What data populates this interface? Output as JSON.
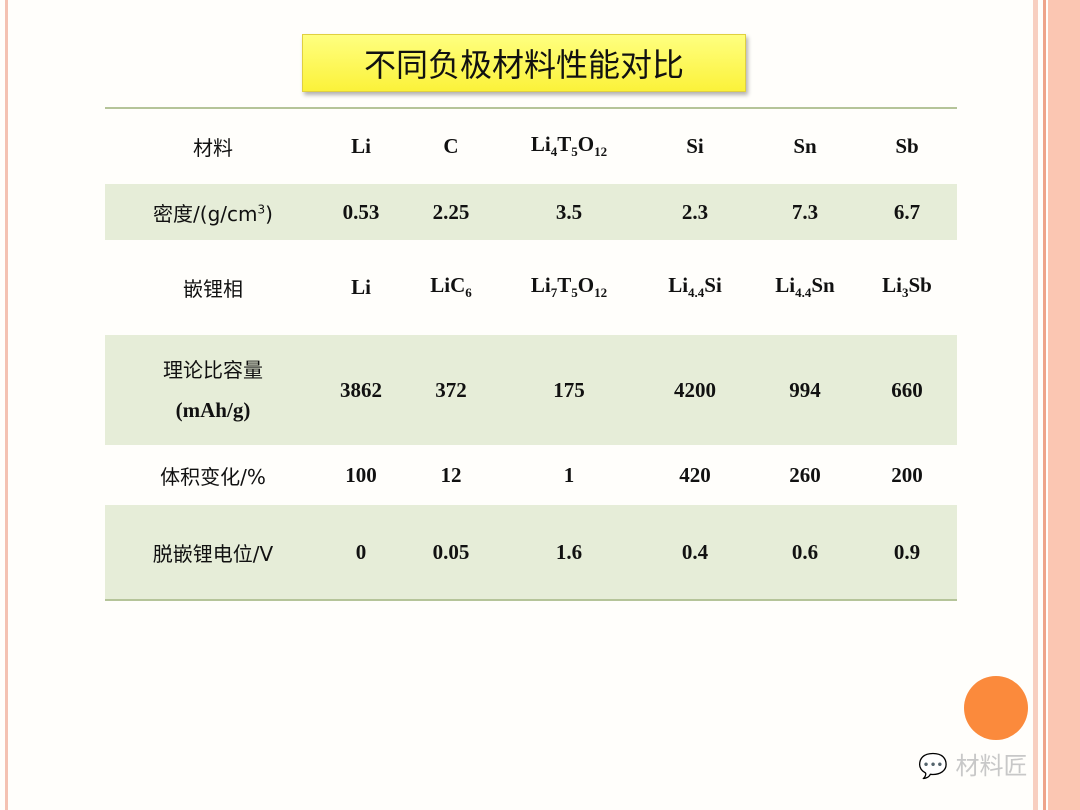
{
  "title": "不同负极材料性能对比",
  "table": {
    "header": [
      "材料",
      "Li",
      "C",
      "Li4T5O12",
      "Si",
      "Sn",
      "Sb"
    ],
    "rows": [
      {
        "label": "密度/(g/cm3)",
        "values": [
          "0.53",
          "2.25",
          "3.5",
          "2.3",
          "7.3",
          "6.7"
        ]
      },
      {
        "label": "嵌锂相",
        "values": [
          "Li",
          "LiC6",
          "Li7T5O12",
          "Li4.4Si",
          "Li4.4Sn",
          "Li3Sb"
        ]
      },
      {
        "label": "理论比容量 (mAh/g)",
        "values": [
          "3862",
          "372",
          "175",
          "4200",
          "994",
          "660"
        ]
      },
      {
        "label": "体积变化/%",
        "values": [
          "100",
          "12",
          "1",
          "420",
          "260",
          "200"
        ]
      },
      {
        "label": "脱嵌锂电位/V",
        "values": [
          "0",
          "0.05",
          "1.6",
          "0.4",
          "0.6",
          "0.9"
        ]
      }
    ]
  },
  "watermark": "材料匠",
  "colors": {
    "title_bg": "#fbf23a",
    "stripe": "#e6edd8",
    "circle": "#fb8a3c"
  }
}
